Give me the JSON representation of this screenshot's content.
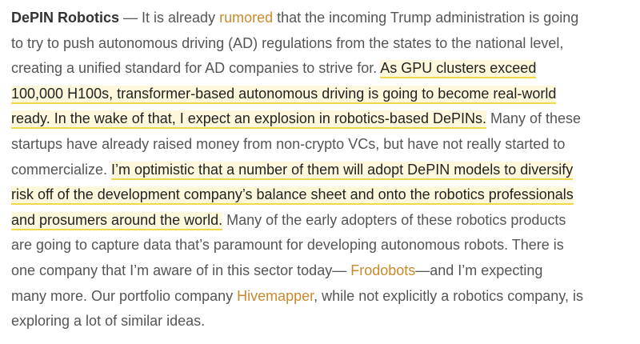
{
  "colors": {
    "text": "#555555",
    "link": "#c98a2c",
    "highlight_bg": "#fdf8dc",
    "highlight_underline": "#efd84a"
  },
  "paragraph": {
    "lines": [
      [
        {
          "t": "DePIN Robotics",
          "s": "bold"
        },
        {
          "t": " — It is already ",
          "s": ""
        },
        {
          "t": "rumored",
          "s": "link"
        },
        {
          "t": " that the incoming Trump administration is going",
          "s": ""
        }
      ],
      [
        {
          "t": "to try to push autonomous driving (AD) regulations from the states to the national level,",
          "s": ""
        }
      ],
      [
        {
          "t": "creating a unified standard for AD companies to strive for. ",
          "s": ""
        },
        {
          "t": "As GPU clusters exceed",
          "s": "hl"
        }
      ],
      [
        {
          "t": "100,000 H100s, transformer-based autonomous driving is going to become real-world",
          "s": "hl"
        }
      ],
      [
        {
          "t": "ready. In the wake of that, I expect an explosion in robotics-based DePINs.",
          "s": "hl"
        },
        {
          "t": " Many of these",
          "s": ""
        }
      ],
      [
        {
          "t": "startups have already raised money from non-crypto VCs, but have not really started to",
          "s": ""
        }
      ],
      [
        {
          "t": "commercialize. ",
          "s": ""
        },
        {
          "t": "I’m optimistic that a number of them will adopt DePIN models to diversify",
          "s": "hl"
        }
      ],
      [
        {
          "t": "risk off of the development company’s balance sheet and onto the robotics professionals",
          "s": "hl"
        }
      ],
      [
        {
          "t": "and prosumers around the world.",
          "s": "hl"
        },
        {
          "t": " Many of the early adopters of these robotics products",
          "s": ""
        }
      ],
      [
        {
          "t": "are going to capture data that’s paramount for developing autonomous robots. There is",
          "s": ""
        }
      ],
      [
        {
          "t": "one company that I’m aware of in this sector today— ",
          "s": ""
        },
        {
          "t": "Frodobots",
          "s": "link"
        },
        {
          "t": "—and I’m expecting",
          "s": ""
        }
      ],
      [
        {
          "t": "many more. Our portfolio company ",
          "s": ""
        },
        {
          "t": "Hivemapper",
          "s": "link"
        },
        {
          "t": ", while not explicitly a robotics company, is",
          "s": ""
        }
      ],
      [
        {
          "t": "exploring a lot of similar ideas.",
          "s": ""
        }
      ]
    ]
  }
}
